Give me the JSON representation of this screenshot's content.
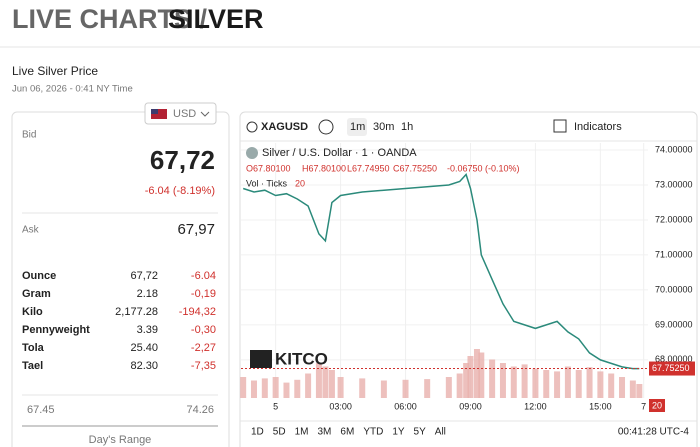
{
  "header": {
    "title_prefix": "LIVE CHARTS /",
    "title_main": "SILVER"
  },
  "price_panel": {
    "heading": "Live Silver Price",
    "timestamp": "Jun 06, 2026 - 0:41 NY Time",
    "currency": "USD",
    "bid_label": "Bid",
    "bid": "67,72",
    "change": "-6.04 (-8.19%)",
    "ask_label": "Ask",
    "ask": "67,97",
    "rows": [
      [
        "Ounce",
        "67,72",
        "-6.04"
      ],
      [
        "Gram",
        "2.18",
        "-0,19"
      ],
      [
        "Kilo",
        "2,177.28",
        "-194,32"
      ],
      [
        "Pennyweight",
        "3.39",
        "-0,30"
      ],
      [
        "Tola",
        "25.40",
        "-2,27"
      ],
      [
        "Tael",
        "82.30",
        "-7,35"
      ]
    ],
    "range_low": "67.45",
    "range_high": "74.26",
    "range_label": "Day's Range"
  },
  "toolbar": {
    "symbol": "XAGUSD",
    "intervals": [
      "1m",
      "30m",
      "1h"
    ],
    "indicators": "Indicators"
  },
  "legend": {
    "ohlc": [
      "O67.80100",
      "H67.80100",
      "L67.74950",
      "C67.75250",
      "-0.06750 (-0.10%)"
    ],
    "volume": "Vol · Ticks",
    "volume_value": "20"
  },
  "logo": "KITCO",
  "ranges": [
    "1D",
    "5D",
    "1M",
    "3M",
    "6M",
    "YTD",
    "1Y",
    "5Y",
    "All"
  ],
  "clock": "00:41:28 UTC-4",
  "chart_data": {
    "type": "line",
    "x": [
      -1.5,
      -1,
      -0.5,
      0,
      0.5,
      1,
      1.5,
      2,
      2.3,
      2.6,
      3,
      4,
      5,
      6,
      7,
      8,
      8.5,
      8.8,
      9,
      9.3,
      9.5,
      10,
      10.5,
      11,
      11.5,
      12,
      12.5,
      13,
      13.5,
      14,
      14.5,
      15,
      15.5,
      16,
      16.5,
      16.8
    ],
    "series": [
      {
        "name": "Silver / U.S. Dollar · 1 · OANDA",
        "color": "#2b8a7b",
        "values": [
          72.9,
          72.8,
          72.85,
          72.7,
          72.75,
          72.6,
          72.4,
          71.6,
          71.4,
          72.5,
          72.7,
          72.8,
          72.85,
          72.9,
          72.95,
          73.0,
          73.1,
          73.3,
          72.9,
          72.0,
          71.0,
          70.3,
          69.6,
          69.1,
          69.0,
          68.9,
          69.0,
          69.1,
          68.8,
          68.6,
          68.2,
          68.0,
          67.9,
          67.8,
          67.75,
          67.75
        ]
      }
    ],
    "volume": {
      "color": "#e9b0ac",
      "ylim": [
        0,
        100
      ],
      "values": [
        30,
        25,
        28,
        30,
        22,
        26,
        35,
        50,
        45,
        40,
        30,
        28,
        25,
        26,
        27,
        30,
        35,
        50,
        60,
        70,
        65,
        55,
        50,
        45,
        48,
        42,
        40,
        38,
        45,
        40,
        44,
        38,
        35,
        30,
        25,
        20
      ]
    },
    "last_price": {
      "value": 67.7525,
      "label": "67.75250"
    },
    "xlim": [
      -1.6,
      17.2
    ],
    "xticks": [
      {
        "value": 0,
        "label": "5"
      },
      {
        "value": 3,
        "label": "03:00"
      },
      {
        "value": 6,
        "label": "06:00"
      },
      {
        "value": 9,
        "label": "09:00"
      },
      {
        "value": 12,
        "label": "12:00"
      },
      {
        "value": 15,
        "label": "15:00"
      },
      {
        "value": 17,
        "label": "7"
      }
    ],
    "ylim": [
      66.91,
      74.2
    ],
    "yticks": [
      {
        "value": 74,
        "label": "74.00000"
      },
      {
        "value": 73,
        "label": "73.00000"
      },
      {
        "value": 72,
        "label": "72.00000"
      },
      {
        "value": 71,
        "label": "71.00000"
      },
      {
        "value": 70,
        "label": "70.00000"
      },
      {
        "value": 69,
        "label": "69.00000"
      },
      {
        "value": 68,
        "label": "68.00000"
      }
    ],
    "grid": true
  }
}
